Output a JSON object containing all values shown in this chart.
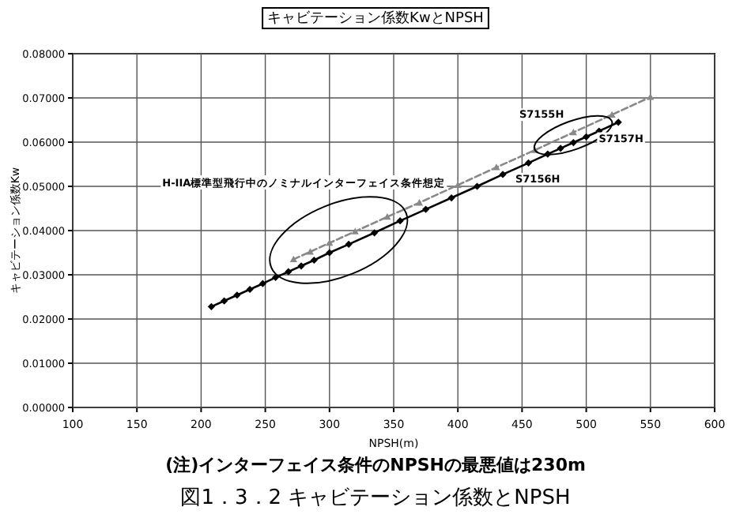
{
  "chart_data": {
    "type": "line",
    "title": "キャビテーション係数KwとNPSH",
    "xlabel": "NPSH(m)",
    "ylabel": "キャビテーション係数Kw",
    "xlim": [
      100,
      600
    ],
    "xticks": [
      100,
      150,
      200,
      250,
      300,
      350,
      400,
      450,
      500,
      550,
      600
    ],
    "ylim": [
      0,
      0.08
    ],
    "yticks": [
      {
        "value": 0,
        "label": "0.00000"
      },
      {
        "value": 0.01,
        "label": "0.01000"
      },
      {
        "value": 0.02,
        "label": "0.02000"
      },
      {
        "value": 0.03,
        "label": "0.03000"
      },
      {
        "value": 0.04,
        "label": "0.04000"
      },
      {
        "value": 0.05,
        "label": "0.05000"
      },
      {
        "value": 0.06,
        "label": "0.06000"
      },
      {
        "value": 0.07,
        "label": "0.07000"
      },
      {
        "value": 0.08,
        "label": "0.08000"
      }
    ],
    "grid": true,
    "series": [
      {
        "color": "#000000",
        "marker": "diamond",
        "line_style": "solid",
        "x": [
          208,
          218,
          228,
          238,
          248,
          258,
          268,
          278,
          288,
          300,
          315,
          335,
          355,
          375,
          395,
          415,
          435,
          455,
          470,
          480,
          490,
          500,
          510,
          525
        ],
        "values": [
          0.0228,
          0.0241,
          0.0254,
          0.0267,
          0.028,
          0.0294,
          0.0307,
          0.032,
          0.0333,
          0.035,
          0.0369,
          0.0395,
          0.0422,
          0.0448,
          0.0474,
          0.05,
          0.0527,
          0.0553,
          0.0573,
          0.0586,
          0.0599,
          0.0612,
          0.0625,
          0.0645
        ]
      },
      {
        "color": "#888888",
        "marker": "triangle",
        "line_style": "dashed",
        "x": [
          272,
          285,
          300,
          320,
          345,
          370,
          400,
          430,
          460,
          490,
          520,
          550
        ],
        "values": [
          0.0335,
          0.0352,
          0.0372,
          0.0398,
          0.0431,
          0.0463,
          0.0503,
          0.0543,
          0.0582,
          0.0622,
          0.0662,
          0.0702
        ]
      }
    ],
    "annotations": [
      "H-IIA標準型飛行中のノミナルインターフェイス条件想定",
      {
        "text": "S7155H",
        "x": 480,
        "y": 0.0605
      },
      {
        "text": "S7157H",
        "x": 500,
        "y": 0.0615
      },
      {
        "text": "S7156H",
        "x": 440,
        "y": 0.0527
      },
      "(注)インターフェイス条件のNPSHの最悪値は230m",
      "図1．3．2 キャビテーション係数とNPSH"
    ]
  }
}
